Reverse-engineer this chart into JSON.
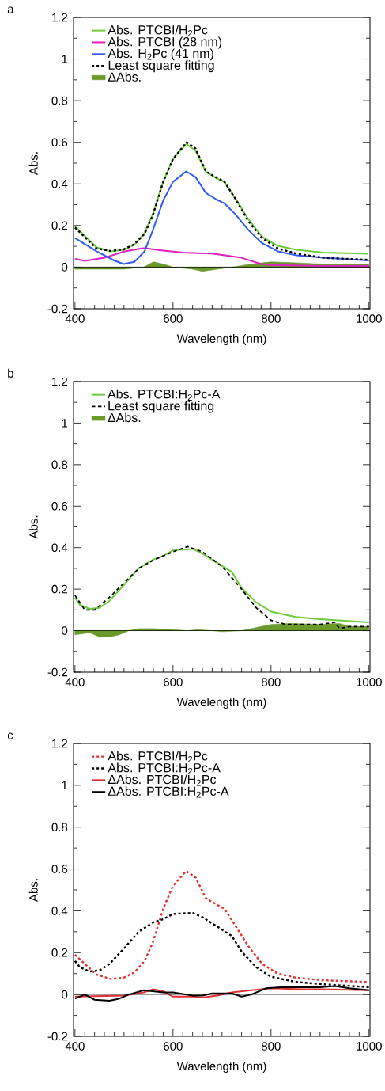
{
  "chart_data": [
    {
      "type": "line",
      "title": "a",
      "xlabel": "Wavelength (nm)",
      "ylabel": "Abs.",
      "xlim": [
        397,
        1002
      ],
      "ylim": [
        -0.2,
        1.2
      ],
      "xticks": [
        400,
        600,
        800,
        1000
      ],
      "yticks": [
        -0.2,
        0,
        0.2,
        0.4,
        0.6,
        0.8,
        1,
        1.2
      ],
      "legend": "top left",
      "grid": false,
      "ref_lines": [
        {
          "axis": "y",
          "value": 0,
          "color": "#000000"
        }
      ],
      "series": [
        {
          "name": "Abs. PTCBI/H$_{2}$Pc",
          "color": "#6dcc3a",
          "line_style": "solid",
          "x": [
            400,
            444,
            472,
            499,
            521,
            542,
            559,
            580,
            600,
            627,
            646,
            667,
            689,
            705,
            727,
            754,
            782,
            814,
            852,
            907,
            999
          ],
          "values": [
            0.197,
            0.095,
            0.076,
            0.083,
            0.108,
            0.166,
            0.255,
            0.41,
            0.52,
            0.592,
            0.56,
            0.459,
            0.427,
            0.41,
            0.33,
            0.23,
            0.146,
            0.102,
            0.083,
            0.07,
            0.064
          ]
        },
        {
          "name": "Abs. PTCBI (28 nm)",
          "color": "#e020c0",
          "line_style": "solid",
          "x": [
            400,
            420,
            460,
            500,
            540,
            580,
            620,
            680,
            740,
            780,
            800,
            900,
            1000
          ],
          "values": [
            0.04,
            0.03,
            0.045,
            0.075,
            0.092,
            0.08,
            0.07,
            0.065,
            0.045,
            0.015,
            0.01,
            0.005,
            0.005
          ]
        },
        {
          "name": "Abs. H$_{2}$Pc (41 nm)",
          "color": "#2f5bf0",
          "line_style": "solid",
          "x": [
            400,
            444,
            480,
            499,
            521,
            542,
            559,
            580,
            600,
            627,
            646,
            667,
            689,
            705,
            727,
            754,
            782,
            814,
            852,
            907,
            1000
          ],
          "values": [
            0.14,
            0.076,
            0.032,
            0.015,
            0.025,
            0.076,
            0.178,
            0.32,
            0.41,
            0.46,
            0.433,
            0.357,
            0.325,
            0.306,
            0.255,
            0.178,
            0.115,
            0.076,
            0.057,
            0.045,
            0.032
          ]
        },
        {
          "name": "Least square fitting",
          "color": "#000000",
          "line_style": "dotted",
          "x": [
            400,
            444,
            472,
            499,
            521,
            542,
            559,
            580,
            600,
            628,
            646,
            667,
            689,
            705,
            727,
            754,
            782,
            814,
            852,
            907,
            1000
          ],
          "values": [
            0.19,
            0.09,
            0.078,
            0.085,
            0.11,
            0.16,
            0.25,
            0.41,
            0.52,
            0.6,
            0.57,
            0.46,
            0.43,
            0.41,
            0.33,
            0.22,
            0.14,
            0.09,
            0.065,
            0.045,
            0.035
          ]
        },
        {
          "name": "ΔAbs.",
          "type": "area",
          "color": "#6a9a2a",
          "x": [
            400,
            450,
            500,
            540,
            560,
            580,
            600,
            640,
            660,
            690,
            720,
            760,
            800,
            860,
            900,
            1000
          ],
          "values": [
            -0.01,
            -0.01,
            -0.01,
            0.0,
            0.025,
            0.015,
            0.0,
            -0.01,
            -0.02,
            -0.01,
            0.0,
            0.015,
            0.025,
            0.02,
            0.015,
            0.015
          ]
        }
      ]
    },
    {
      "type": "line",
      "title": "b",
      "xlabel": "Wavelength (nm)",
      "ylabel": "Abs.",
      "xlim": [
        397,
        1002
      ],
      "ylim": [
        -0.2,
        1.2
      ],
      "xticks": [
        400,
        600,
        800,
        1000
      ],
      "yticks": [
        -0.2,
        0,
        0.2,
        0.4,
        0.6,
        0.8,
        1,
        1.2
      ],
      "legend": "top left",
      "grid": false,
      "ref_lines": [
        {
          "axis": "y",
          "value": 0,
          "color": "#000000"
        }
      ],
      "series": [
        {
          "name": "Abs. PTCBI:H$_{2}$Pc-A",
          "color": "#6dcc3a",
          "line_style": "solid",
          "x": [
            400,
            410,
            430,
            450,
            470,
            500,
            530,
            560,
            580,
            600,
            640,
            660,
            690,
            720,
            740,
            770,
            800,
            850,
            900,
            1000
          ],
          "values": [
            0.16,
            0.124,
            0.105,
            0.11,
            0.143,
            0.22,
            0.3,
            0.343,
            0.36,
            0.387,
            0.394,
            0.372,
            0.327,
            0.283,
            0.206,
            0.136,
            0.092,
            0.066,
            0.056,
            0.04
          ]
        },
        {
          "name": "Least square fitting",
          "color": "#000000",
          "line_style": "dashed",
          "x": [
            400,
            420,
            440,
            470,
            500,
            530,
            560,
            600,
            630,
            660,
            700,
            740,
            770,
            800,
            830,
            900,
            930,
            940,
            960,
            1000
          ],
          "values": [
            0.17,
            0.1,
            0.1,
            0.16,
            0.23,
            0.3,
            0.34,
            0.38,
            0.405,
            0.38,
            0.31,
            0.2,
            0.11,
            0.05,
            0.03,
            0.03,
            0.04,
            0.01,
            0.02,
            0.02
          ]
        },
        {
          "name": "ΔAbs.",
          "type": "area",
          "color": "#6a9a2a",
          "x": [
            400,
            430,
            450,
            470,
            490,
            510,
            530,
            560,
            600,
            630,
            650,
            680,
            700,
            740,
            760,
            780,
            800,
            840,
            900,
            940,
            960,
            1000
          ],
          "values": [
            -0.02,
            -0.01,
            -0.03,
            -0.03,
            -0.02,
            0.0,
            0.01,
            0.01,
            0.005,
            0.0,
            0.005,
            0.0,
            -0.005,
            0.0,
            0.01,
            0.02,
            0.03,
            0.035,
            0.03,
            0.035,
            0.02,
            0.02
          ]
        }
      ]
    },
    {
      "type": "line",
      "title": "c",
      "xlabel": "Wavelength (nm)",
      "ylabel": "Abs.",
      "xlim": [
        397,
        1002
      ],
      "ylim": [
        -0.2,
        1.2
      ],
      "xticks": [
        400,
        600,
        800,
        1000
      ],
      "yticks": [
        -0.2,
        0,
        0.2,
        0.4,
        0.6,
        0.8,
        1,
        1.2
      ],
      "legend": "top left",
      "grid": false,
      "ref_lines": [
        {
          "axis": "y",
          "value": 0,
          "color": "#000000"
        }
      ],
      "series": [
        {
          "name": "Abs. PTCBI/H$_{2}$Pc",
          "color": "#e03030",
          "line_style": "dotted",
          "x": [
            400,
            444,
            472,
            499,
            521,
            542,
            559,
            580,
            600,
            627,
            646,
            667,
            689,
            705,
            727,
            754,
            782,
            814,
            852,
            907,
            999
          ],
          "values": [
            0.19,
            0.095,
            0.075,
            0.08,
            0.105,
            0.16,
            0.25,
            0.41,
            0.52,
            0.59,
            0.56,
            0.46,
            0.43,
            0.41,
            0.33,
            0.23,
            0.146,
            0.1,
            0.08,
            0.068,
            0.06
          ]
        },
        {
          "name": "Abs. PTCBI:H$_{2}$Pc-A",
          "color": "#000000",
          "line_style": "dotted",
          "x": [
            400,
            410,
            430,
            450,
            470,
            500,
            530,
            560,
            580,
            600,
            640,
            660,
            690,
            720,
            740,
            770,
            800,
            850,
            900,
            1000
          ],
          "values": [
            0.16,
            0.13,
            0.11,
            0.115,
            0.145,
            0.22,
            0.3,
            0.345,
            0.36,
            0.385,
            0.39,
            0.37,
            0.325,
            0.28,
            0.205,
            0.13,
            0.085,
            0.06,
            0.05,
            0.035
          ]
        },
        {
          "name": "ΔAbs.  PTCBI/H$_{2}$Pc",
          "color": "#e03030",
          "line_style": "solid",
          "x": [
            400,
            500,
            540,
            560,
            580,
            600,
            640,
            660,
            690,
            720,
            760,
            800,
            860,
            900,
            1000
          ],
          "values": [
            -0.01,
            -0.005,
            0.01,
            0.025,
            0.015,
            -0.01,
            -0.01,
            -0.015,
            -0.005,
            0.01,
            0.02,
            0.03,
            0.025,
            0.025,
            0.02
          ]
        },
        {
          "name": "ΔAbs.  PTCBI:H$_{2}$Pc-A",
          "color": "#000000",
          "line_style": "solid",
          "x": [
            400,
            420,
            440,
            470,
            490,
            510,
            540,
            580,
            600,
            640,
            660,
            680,
            720,
            740,
            760,
            790,
            820,
            900,
            930,
            960,
            1000
          ],
          "values": [
            -0.02,
            0.0,
            -0.025,
            -0.03,
            -0.02,
            0.0,
            0.02,
            0.01,
            0.01,
            -0.005,
            -0.005,
            0.005,
            0.005,
            -0.01,
            0.0,
            0.03,
            0.035,
            0.035,
            0.04,
            0.03,
            0.02
          ]
        }
      ]
    }
  ]
}
